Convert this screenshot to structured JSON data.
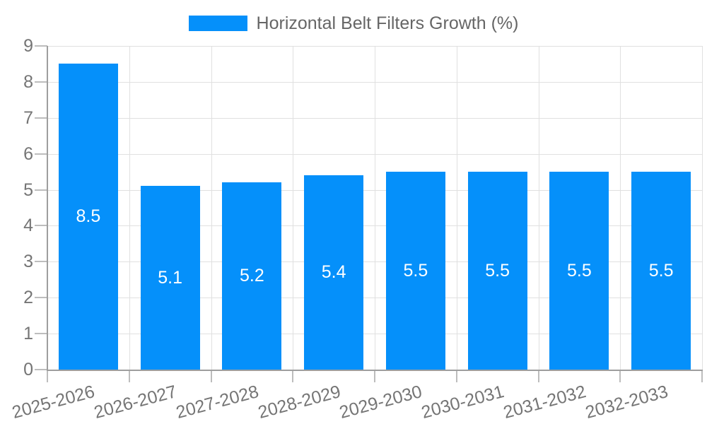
{
  "chart_data": {
    "type": "bar",
    "title": "Horizontal Belt Filters Growth (%)",
    "legend_label": "Horizontal Belt Filters Growth (%)",
    "legend_position": "top-center",
    "categories": [
      "2025-2026",
      "2026-2027",
      "2027-2028",
      "2028-2029",
      "2029-2030",
      "2030-2031",
      "2031-2032",
      "2032-2033"
    ],
    "values": [
      8.5,
      5.1,
      5.2,
      5.4,
      5.5,
      5.5,
      5.5,
      5.5
    ],
    "value_labels": [
      "8.5",
      "5.1",
      "5.2",
      "5.4",
      "5.5",
      "5.5",
      "5.5",
      "5.5"
    ],
    "xlabel": "",
    "ylabel": "",
    "ylim": [
      0,
      9
    ],
    "ytick_interval": 1,
    "ytick_labels": [
      "0",
      "1",
      "2",
      "3",
      "4",
      "5",
      "6",
      "7",
      "8",
      "9"
    ],
    "grid": "on",
    "colors": {
      "bar": "#0590fa",
      "grid_line": "#e0e0e0",
      "axis_line": "#9e9e9e",
      "tick_line": "#bdbdbd",
      "axis_label": "#757575",
      "legend_text": "#666666",
      "value_label": "#ffffff",
      "background": "#ffffff"
    }
  }
}
